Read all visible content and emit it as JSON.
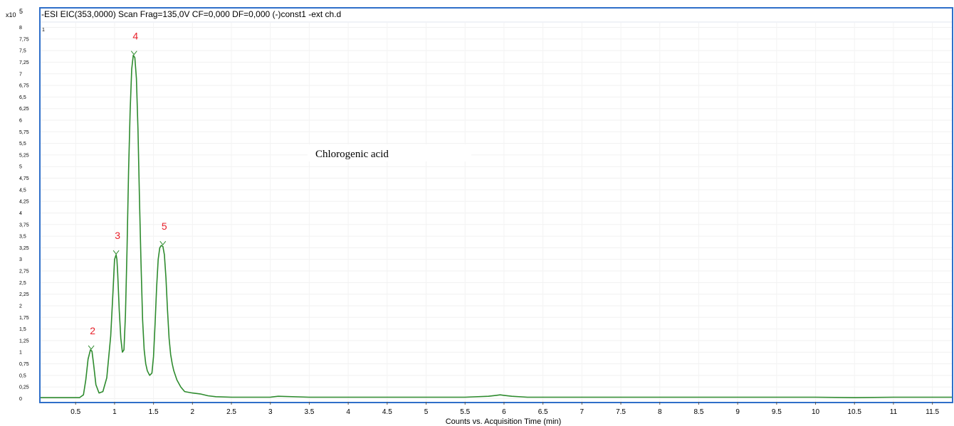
{
  "chart_data": {
    "type": "line",
    "title": "-ESI EIC(353,0000) Scan Frag=135,0V CF=0,000 DF=0,000 (-)const1 -ext ch.d",
    "scale_label": "x10",
    "scale_exponent": "5",
    "corner_label": "1",
    "xlabel": "Counts vs. Acquisition Time (min)",
    "ylabel": "",
    "annotation": "Chlorogenic acid",
    "xlim": [
      0.05,
      11.75
    ],
    "ylim": [
      -0.07,
      8.1
    ],
    "x_ticks": [
      "0.5",
      "1",
      "1.5",
      "2",
      "2.5",
      "3",
      "3.5",
      "4",
      "4.5",
      "5",
      "5.5",
      "6",
      "6.5",
      "7",
      "7.5",
      "8",
      "8.5",
      "9",
      "9.5",
      "10",
      "10.5",
      "11",
      "11.5"
    ],
    "y_ticks": [
      "0",
      "0,25",
      "0,5",
      "0,75",
      "1",
      "1,25",
      "1,5",
      "1,75",
      "2",
      "2,25",
      "2,5",
      "2,75",
      "3",
      "3,25",
      "3,5",
      "3,75",
      "4",
      "4,25",
      "4,5",
      "4,75",
      "5",
      "5,25",
      "5,5",
      "5,75",
      "6",
      "6,25",
      "6,5",
      "6,75",
      "7",
      "7,25",
      "7,5",
      "7,75",
      "8"
    ],
    "series": [
      {
        "color": "#2e8b2e",
        "x": [
          0.05,
          0.55,
          0.6,
          0.63,
          0.66,
          0.69,
          0.71,
          0.73,
          0.76,
          0.8,
          0.85,
          0.9,
          0.95,
          0.98,
          1.0,
          1.02,
          1.03,
          1.04,
          1.06,
          1.08,
          1.1,
          1.12,
          1.14,
          1.16,
          1.18,
          1.2,
          1.22,
          1.24,
          1.26,
          1.28,
          1.3,
          1.32,
          1.34,
          1.36,
          1.38,
          1.4,
          1.42,
          1.45,
          1.48,
          1.5,
          1.52,
          1.54,
          1.56,
          1.58,
          1.6,
          1.62,
          1.64,
          1.66,
          1.68,
          1.7,
          1.72,
          1.74,
          1.76,
          1.8,
          1.85,
          1.9,
          2.0,
          2.1,
          2.2,
          2.3,
          2.5,
          3.0,
          3.1,
          3.5,
          4.0,
          4.5,
          5.0,
          5.5,
          5.8,
          5.9,
          5.95,
          6.0,
          6.1,
          6.3,
          7.0,
          8.0,
          9.0,
          10.0,
          10.5,
          11.0,
          11.5,
          11.75
        ],
        "y": [
          0.02,
          0.02,
          0.08,
          0.4,
          0.85,
          1.05,
          1.02,
          0.75,
          0.3,
          0.12,
          0.15,
          0.45,
          1.35,
          2.3,
          3.0,
          3.1,
          3.0,
          2.7,
          1.9,
          1.3,
          1.0,
          1.05,
          1.8,
          3.2,
          4.9,
          6.2,
          7.1,
          7.4,
          7.35,
          6.9,
          5.8,
          4.3,
          2.9,
          1.7,
          1.05,
          0.75,
          0.6,
          0.5,
          0.55,
          0.9,
          1.6,
          2.4,
          3.0,
          3.25,
          3.3,
          3.28,
          3.1,
          2.6,
          1.9,
          1.3,
          0.95,
          0.75,
          0.6,
          0.4,
          0.25,
          0.15,
          0.12,
          0.1,
          0.06,
          0.04,
          0.03,
          0.03,
          0.05,
          0.03,
          0.03,
          0.03,
          0.03,
          0.03,
          0.05,
          0.07,
          0.08,
          0.07,
          0.05,
          0.03,
          0.03,
          0.03,
          0.03,
          0.03,
          0.02,
          0.03,
          0.03,
          0.03
        ]
      }
    ],
    "peaks": [
      {
        "label": "2",
        "x": 0.7,
        "y": 1.05,
        "color": "#e8202a"
      },
      {
        "label": "3",
        "x": 1.02,
        "y": 3.1,
        "color": "#e8202a"
      },
      {
        "label": "4",
        "x": 1.25,
        "y": 7.4,
        "color": "#e8202a"
      },
      {
        "label": "5",
        "x": 1.62,
        "y": 3.3,
        "color": "#e8202a"
      }
    ],
    "grid": true,
    "frame_color": "#2f6fc9"
  }
}
